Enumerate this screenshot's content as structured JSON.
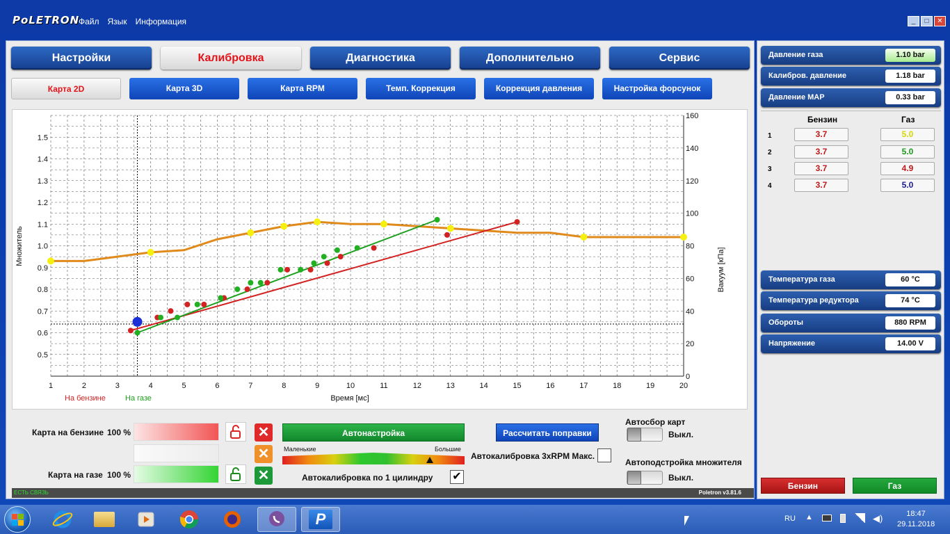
{
  "app": {
    "brand": "PoLETRON",
    "menu": [
      "Файл",
      "Язык",
      "Информация"
    ],
    "win_buttons": {
      "min": "_",
      "max": "□",
      "close": "✕"
    }
  },
  "tabs": [
    "Настройки",
    "Калибровка",
    "Диагностика",
    "Дополнительно",
    "Сервис"
  ],
  "active_tab": 1,
  "subtabs": [
    "Карта 2D",
    "Карта 3D",
    "Карта RPM",
    "Темп. Коррекция",
    "Коррекция давления",
    "Настройка форсунок"
  ],
  "active_subtab": 0,
  "chart_data": {
    "type": "line+scatter",
    "xlabel": "Время [мс]",
    "ylabel_left": "Множитель",
    "ylabel_right": "Вакуум [кПа]",
    "legend": [
      {
        "name": "На бензине",
        "color": "#d32222"
      },
      {
        "name": "На газе",
        "color": "#1ea01e"
      }
    ],
    "x_ticks": [
      1,
      2,
      3,
      4,
      5,
      6,
      7,
      8,
      9,
      10,
      11,
      12,
      13,
      14,
      15,
      16,
      17,
      18,
      19,
      20
    ],
    "xlim": [
      1,
      20
    ],
    "y_left_ticks": [
      "0.5",
      "0.6",
      "0.7",
      "0.8",
      "0.9",
      "1.0",
      "1.1",
      "1.2",
      "1.3",
      "1.4",
      "1.5"
    ],
    "ylim_left": [
      0.4,
      1.6
    ],
    "y_right_ticks": [
      0,
      20,
      40,
      60,
      80,
      100,
      120,
      140,
      160
    ],
    "ylim_right": [
      0,
      160
    ],
    "grid": true,
    "multiplier_curve": {
      "color": "#e08a1c",
      "points": [
        [
          1,
          0.93
        ],
        [
          2,
          0.93
        ],
        [
          3,
          0.95
        ],
        [
          4,
          0.97
        ],
        [
          5,
          0.98
        ],
        [
          6,
          1.03
        ],
        [
          7,
          1.06
        ],
        [
          8,
          1.09
        ],
        [
          9,
          1.11
        ],
        [
          10,
          1.1
        ],
        [
          11,
          1.1
        ],
        [
          12,
          1.09
        ],
        [
          13,
          1.08
        ],
        [
          14,
          1.07
        ],
        [
          15,
          1.06
        ],
        [
          16,
          1.06
        ],
        [
          17,
          1.04
        ],
        [
          18,
          1.04
        ],
        [
          19,
          1.04
        ],
        [
          20,
          1.04
        ]
      ],
      "markers": [
        [
          1,
          0.93
        ],
        [
          4,
          0.97
        ],
        [
          7,
          1.06
        ],
        [
          8,
          1.09
        ],
        [
          9,
          1.11
        ],
        [
          11,
          1.1
        ],
        [
          13,
          1.08
        ],
        [
          17,
          1.04
        ],
        [
          20,
          1.04
        ]
      ]
    },
    "petrol_trend": {
      "color": "#d32222",
      "from": [
        3.4,
        0.61
      ],
      "to": [
        15,
        1.11
      ]
    },
    "gas_trend": {
      "color": "#1ea01e",
      "from": [
        3.6,
        0.6
      ],
      "to": [
        12.6,
        1.12
      ]
    },
    "petrol_points": [
      [
        3.4,
        0.61
      ],
      [
        4.2,
        0.67
      ],
      [
        4.6,
        0.7
      ],
      [
        5.1,
        0.73
      ],
      [
        5.6,
        0.73
      ],
      [
        6.2,
        0.76
      ],
      [
        6.9,
        0.8
      ],
      [
        7.5,
        0.83
      ],
      [
        8.1,
        0.89
      ],
      [
        8.8,
        0.89
      ],
      [
        9.3,
        0.92
      ],
      [
        9.7,
        0.95
      ],
      [
        10.7,
        0.99
      ],
      [
        12.9,
        1.05
      ],
      [
        15,
        1.11
      ]
    ],
    "gas_points": [
      [
        3.6,
        0.6
      ],
      [
        4.3,
        0.67
      ],
      [
        4.8,
        0.67
      ],
      [
        5.4,
        0.73
      ],
      [
        6.1,
        0.76
      ],
      [
        6.6,
        0.8
      ],
      [
        7.0,
        0.83
      ],
      [
        7.3,
        0.83
      ],
      [
        7.9,
        0.89
      ],
      [
        8.5,
        0.89
      ],
      [
        8.9,
        0.92
      ],
      [
        9.2,
        0.95
      ],
      [
        9.6,
        0.98
      ],
      [
        10.2,
        0.99
      ],
      [
        12.6,
        1.12
      ]
    ],
    "cursor": {
      "x": 3.6,
      "y": 0.65,
      "color": "#1a2fd8"
    },
    "crosshair_y": 0.64
  },
  "bottom": {
    "petrol_map_label": "Карта на бензине",
    "petrol_map_pct": "100 %",
    "gas_map_label": "Карта на газе",
    "gas_map_pct": "100 %",
    "autotune_button": "Автонастройка",
    "scale_left": "Маленькие",
    "scale_right": "Большие",
    "calc_button": "Рассчитать поправки",
    "autocal_rpm_label": "Автокалибровка 3xRPM Макс.",
    "autocal_cyl_label": "Автокалибровка по 1 цилиндру",
    "autocollect_label": "Автосбор карт",
    "autocollect_state": "Выкл.",
    "autoadjust_label": "Автоподстройка множителя",
    "autoadjust_state": "Выкл.",
    "status_left": "ЕСТЬ СВЯЗЬ",
    "status_right": "Poletron v3.81.6"
  },
  "side": {
    "top_gauges": [
      {
        "label": "Давление газа",
        "value": "1.10 bar",
        "hl": true
      },
      {
        "label": "Калибров. давление",
        "value": "1.18 bar",
        "hl": false
      },
      {
        "label": "Давление MAP",
        "value": "0.33 bar",
        "hl": false
      }
    ],
    "col_petrol": "Бензин",
    "col_gas": "Газ",
    "cylinders": [
      {
        "n": "1",
        "petrol": "3.7",
        "gas": "5.0",
        "gas_color": "#d6d600"
      },
      {
        "n": "2",
        "petrol": "3.7",
        "gas": "5.0",
        "gas_color": "#1a9a1a"
      },
      {
        "n": "3",
        "petrol": "3.7",
        "gas": "4.9",
        "gas_color": "#c01818"
      },
      {
        "n": "4",
        "petrol": "3.7",
        "gas": "5.0",
        "gas_color": "#1a1a9a"
      }
    ],
    "bottom_gauges": [
      {
        "label": "Температура газа",
        "value": "60 °C"
      },
      {
        "label": "Температура редуктора",
        "value": "74 °C"
      },
      {
        "label": "Обороты",
        "value": "880 RPM"
      },
      {
        "label": "Напряжение",
        "value": "14.00 V"
      }
    ],
    "btn_petrol": "Бензин",
    "btn_gas": "Газ"
  },
  "taskbar": {
    "lang": "RU",
    "time": "18:47",
    "date": "29.11.2018"
  }
}
